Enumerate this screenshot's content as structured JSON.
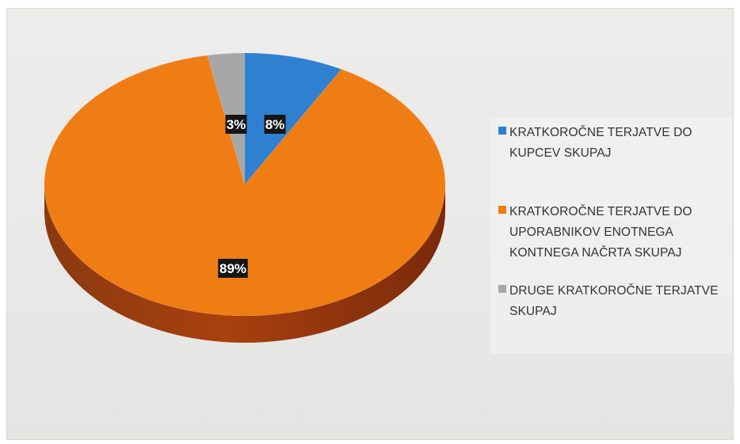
{
  "chart_data": {
    "type": "pie",
    "style": "3d",
    "slices": [
      {
        "label": "KRATKOROČNE TERJATVE DO KUPCEV SKUPAJ",
        "value": 8,
        "display": "8%",
        "color": "#2f80d1"
      },
      {
        "label": "KRATKOROČNE TERJATVE DO UPORABNIKOV ENOTNEGA KONTNEGA NAČRTA  SKUPAJ",
        "value": 89,
        "display": "89%",
        "color": "#f07d14"
      },
      {
        "label": "DRUGE KRATKOROČNE TERJATVE SKUPAJ",
        "value": 3,
        "display": "3%",
        "color": "#a7a7a7"
      }
    ],
    "legend_position": "right"
  },
  "legend": {
    "items": [
      {
        "label": "KRATKOROČNE TERJATVE DO KUPCEV SKUPAJ",
        "color": "#2f80d1"
      },
      {
        "label": "KRATKOROČNE TERJATVE DO UPORABNIKOV ENOTNEGA KONTNEGA NAČRTA  SKUPAJ",
        "color": "#f07d14"
      },
      {
        "label": "DRUGE KRATKOROČNE TERJATVE SKUPAJ",
        "color": "#a7a7a7"
      }
    ]
  }
}
